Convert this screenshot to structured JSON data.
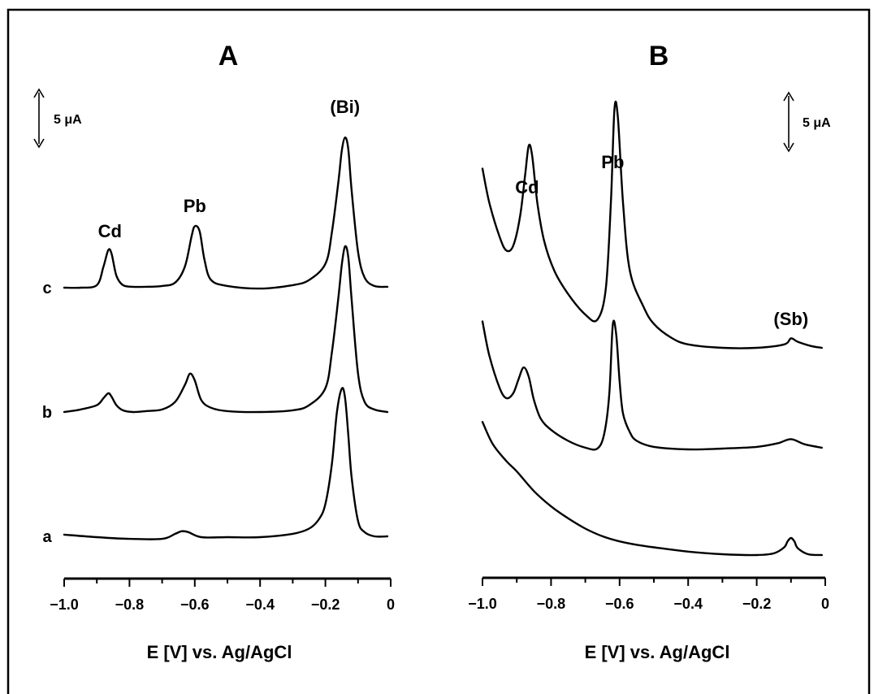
{
  "chart_data": [
    {
      "panel": "A",
      "type": "line",
      "xlabel": "E [V] vs. Ag/AgCl",
      "xlim": [
        -1.0,
        0
      ],
      "xticks": [
        "−1.0",
        "−0.8",
        "−0.6",
        "−0.4",
        "−0.2",
        "0"
      ],
      "scale_bar": "5 μA",
      "peak_labels": [
        {
          "text": "Cd",
          "x": -0.86
        },
        {
          "text": "Pb",
          "x": -0.6
        },
        {
          "text": "(Bi)",
          "x": -0.14
        }
      ],
      "series": [
        {
          "name": "c",
          "x": [
            -1.0,
            -0.95,
            -0.9,
            -0.88,
            -0.865,
            -0.855,
            -0.84,
            -0.82,
            -0.79,
            -0.75,
            -0.7,
            -0.66,
            -0.63,
            -0.61,
            -0.6,
            -0.585,
            -0.57,
            -0.55,
            -0.5,
            -0.4,
            -0.3,
            -0.25,
            -0.2,
            -0.18,
            -0.16,
            -0.15,
            -0.14,
            -0.13,
            -0.12,
            -0.1,
            -0.08,
            -0.05,
            -0.01
          ],
          "y": [
            0.0,
            0.0,
            0.3,
            2.4,
            4.4,
            4.0,
            1.4,
            0.3,
            0.1,
            0.1,
            0.2,
            0.6,
            2.5,
            6.0,
            7.2,
            6.6,
            3.2,
            0.9,
            0.2,
            -0.1,
            0.3,
            0.9,
            2.8,
            6.5,
            12.5,
            16.0,
            17.6,
            16.3,
            11.5,
            4.2,
            1.2,
            0.2,
            0.1
          ]
        },
        {
          "name": "b",
          "x": [
            -1.0,
            -0.95,
            -0.9,
            -0.88,
            -0.865,
            -0.855,
            -0.84,
            -0.82,
            -0.79,
            -0.75,
            -0.7,
            -0.66,
            -0.63,
            -0.615,
            -0.6,
            -0.58,
            -0.55,
            -0.5,
            -0.4,
            -0.3,
            -0.25,
            -0.2,
            -0.18,
            -0.16,
            -0.15,
            -0.14,
            -0.13,
            -0.12,
            -0.1,
            -0.08,
            -0.05,
            -0.01
          ],
          "y": [
            0.0,
            0.3,
            0.8,
            1.6,
            2.2,
            1.8,
            0.8,
            0.2,
            0.0,
            0.1,
            0.3,
            1.2,
            3.2,
            4.5,
            3.7,
            1.4,
            0.5,
            0.1,
            0.0,
            0.2,
            0.8,
            2.8,
            7.0,
            13.5,
            17.2,
            19.4,
            18.2,
            13.3,
            4.5,
            1.2,
            0.3,
            0.0
          ]
        },
        {
          "name": "a",
          "x": [
            -1.0,
            -0.9,
            -0.8,
            -0.7,
            -0.66,
            -0.64,
            -0.62,
            -0.58,
            -0.5,
            -0.4,
            -0.3,
            -0.25,
            -0.22,
            -0.2,
            -0.18,
            -0.165,
            -0.15,
            -0.14,
            -0.13,
            -0.12,
            -0.1,
            -0.08,
            -0.05,
            -0.01
          ],
          "y": [
            0.2,
            -0.1,
            -0.3,
            -0.3,
            0.3,
            0.6,
            0.5,
            -0.1,
            -0.1,
            -0.1,
            0.3,
            0.9,
            2.0,
            3.8,
            8.5,
            14.5,
            17.3,
            16.3,
            12.0,
            7.0,
            1.8,
            0.5,
            0.0,
            0.0
          ]
        }
      ]
    },
    {
      "panel": "B",
      "type": "line",
      "xlabel": "E [V] vs. Ag/AgCl",
      "xlim": [
        -1.0,
        0
      ],
      "xticks": [
        "−1.0",
        "−0.8",
        "−0.6",
        "−0.4",
        "−0.2",
        "0"
      ],
      "scale_bar": "5 μA",
      "peak_labels": [
        {
          "text": "Cd",
          "x": -0.87
        },
        {
          "text": "Pb",
          "x": -0.62
        },
        {
          "text": "(Sb)",
          "x": -0.1
        }
      ],
      "series": [
        {
          "name": "",
          "x": [
            -1.0,
            -0.98,
            -0.95,
            -0.93,
            -0.91,
            -0.89,
            -0.875,
            -0.865,
            -0.855,
            -0.84,
            -0.82,
            -0.79,
            -0.75,
            -0.7,
            -0.665,
            -0.64,
            -0.625,
            -0.615,
            -0.605,
            -0.59,
            -0.57,
            -0.53,
            -0.5,
            -0.45,
            -0.4,
            -0.3,
            -0.2,
            -0.12,
            -0.1,
            -0.08,
            -0.04,
            -0.01
          ],
          "y": [
            21.0,
            17.0,
            13.0,
            11.4,
            12.0,
            15.5,
            20.5,
            23.7,
            22.5,
            17.0,
            12.5,
            9.0,
            6.3,
            3.9,
            3.3,
            7.0,
            17.5,
            28.0,
            27.0,
            17.0,
            9.0,
            4.8,
            2.8,
            1.2,
            0.4,
            0.0,
            0.0,
            0.4,
            1.1,
            0.7,
            0.2,
            0.0
          ]
        },
        {
          "name": "",
          "x": [
            -1.0,
            -0.98,
            -0.95,
            -0.93,
            -0.91,
            -0.895,
            -0.88,
            -0.865,
            -0.85,
            -0.83,
            -0.8,
            -0.75,
            -0.7,
            -0.665,
            -0.645,
            -0.63,
            -0.62,
            -0.61,
            -0.6,
            -0.59,
            -0.57,
            -0.55,
            -0.5,
            -0.4,
            -0.3,
            -0.2,
            -0.14,
            -0.1,
            -0.06,
            -0.01
          ],
          "y": [
            15.0,
            11.0,
            7.2,
            6.0,
            6.6,
            8.2,
            9.6,
            8.5,
            5.8,
            3.6,
            2.3,
            1.0,
            0.2,
            0.1,
            1.8,
            6.5,
            14.6,
            13.5,
            8.0,
            4.2,
            2.0,
            1.0,
            0.3,
            0.0,
            0.1,
            0.3,
            0.7,
            1.2,
            0.6,
            0.2
          ]
        },
        {
          "name": "",
          "x": [
            -1.0,
            -0.97,
            -0.93,
            -0.9,
            -0.85,
            -0.8,
            -0.75,
            -0.7,
            -0.65,
            -0.6,
            -0.55,
            -0.5,
            -0.4,
            -0.3,
            -0.2,
            -0.15,
            -0.12,
            -0.11,
            -0.1,
            -0.09,
            -0.08,
            -0.05,
            -0.01
          ],
          "y": [
            15.6,
            13.0,
            11.0,
            9.8,
            7.5,
            5.7,
            4.3,
            3.1,
            2.2,
            1.6,
            1.2,
            0.9,
            0.4,
            0.1,
            0.0,
            0.2,
            0.9,
            1.6,
            2.0,
            1.6,
            0.8,
            0.1,
            0.0
          ]
        }
      ]
    }
  ]
}
